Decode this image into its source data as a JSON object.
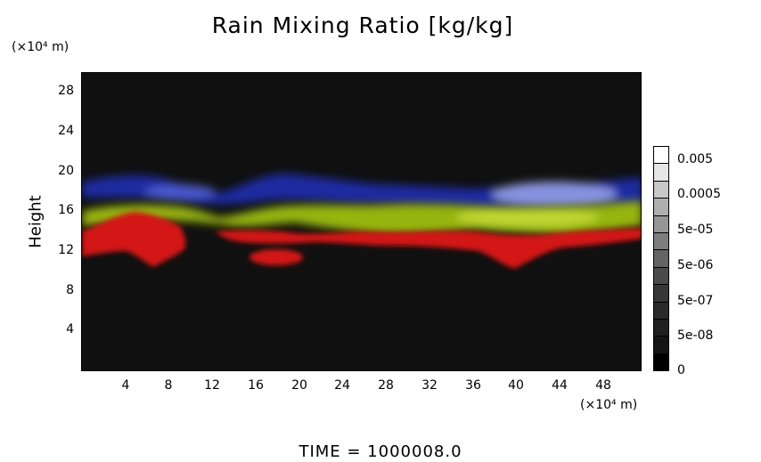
{
  "chart_data": {
    "type": "heatmap",
    "title": "Rain Mixing Ratio [kg/kg]",
    "ylabel": "Height",
    "y_unit": "(×10⁴ m)",
    "x_unit": "(×10⁴ m)",
    "x_ticks": [
      "4",
      "8",
      "12",
      "16",
      "20",
      "24",
      "28",
      "32",
      "36",
      "40",
      "44",
      "48"
    ],
    "y_ticks": [
      "28",
      "24",
      "20",
      "16",
      "12",
      "8",
      "4"
    ],
    "colorbar_labels": [
      "0.005",
      "0.0005",
      "5e-05",
      "5e-06",
      "5e-07",
      "5e-08",
      "0"
    ],
    "colorbar_colors": [
      "#ffffff",
      "#e6e6e6",
      "#c8c8c8",
      "#afafaf",
      "#969696",
      "#7d7d7d",
      "#646464",
      "#4b4b4b",
      "#373737",
      "#2a2a2a",
      "#1f1f1f",
      "#141414",
      "#000000"
    ],
    "bands": [
      {
        "name": "blue",
        "y_range": [
          16.5,
          20.0
        ],
        "color": "#1c2ab4"
      },
      {
        "name": "yellow-green",
        "y_range": [
          14.0,
          17.0
        ],
        "color": "#a4c40e"
      },
      {
        "name": "red",
        "y_range": [
          10.3,
          16.0
        ],
        "color": "#d21414"
      }
    ]
  },
  "footer": "TIME  =  1000008.0"
}
